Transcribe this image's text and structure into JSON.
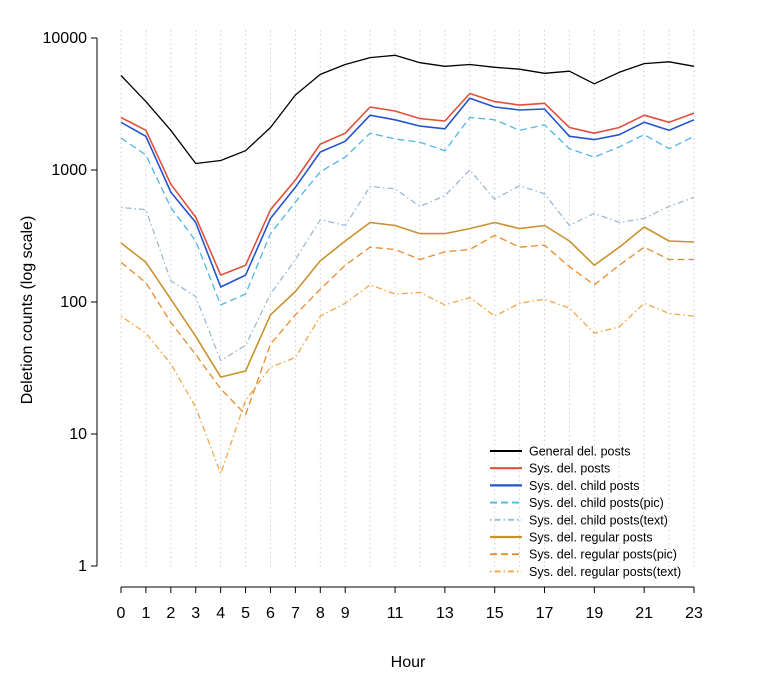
{
  "chart_data": {
    "type": "line",
    "xlabel": "Hour",
    "ylabel": "Deletion counts (log scale)",
    "y_scale": "log",
    "ylim": [
      1,
      10000
    ],
    "xlim": [
      0,
      23
    ],
    "y_ticks": [
      1,
      10,
      100,
      1000,
      10000
    ],
    "y_tick_labels": [
      "1",
      "10",
      "100",
      "1000",
      "10000"
    ],
    "x_ticks": [
      0,
      1,
      2,
      3,
      4,
      5,
      6,
      7,
      8,
      9,
      11,
      13,
      15,
      17,
      19,
      21,
      23
    ],
    "x_tick_labels": [
      "0",
      "1",
      "2",
      "3",
      "4",
      "5",
      "6",
      "7",
      "8",
      "9",
      "11",
      "13",
      "15",
      "17",
      "19",
      "21",
      "23"
    ],
    "vertical_grid": "dotted",
    "legend_position": "bottom-right",
    "x": [
      0,
      1,
      2,
      3,
      4,
      5,
      6,
      7,
      8,
      9,
      10,
      11,
      12,
      13,
      14,
      15,
      16,
      17,
      18,
      19,
      20,
      21,
      22,
      23
    ],
    "series": [
      {
        "name": "General del. posts",
        "color": "#000000",
        "dash": "solid",
        "width": 1.3,
        "values": [
          5200,
          3300,
          2000,
          1120,
          1180,
          1400,
          2100,
          3700,
          5300,
          6300,
          7100,
          7400,
          6500,
          6100,
          6300,
          6000,
          5800,
          5400,
          5600,
          4500,
          5500,
          6400,
          6600,
          6100
        ]
      },
      {
        "name": "Sys. del. posts",
        "color": "#e0503c",
        "dash": "solid",
        "width": 1.6,
        "values": [
          2500,
          2000,
          780,
          440,
          160,
          190,
          500,
          840,
          1570,
          1900,
          3000,
          2800,
          2450,
          2350,
          3800,
          3300,
          3100,
          3200,
          2100,
          1900,
          2100,
          2600,
          2300,
          2700
        ]
      },
      {
        "name": "Sys. del. child posts",
        "color": "#2255cc",
        "dash": "solid",
        "width": 1.6,
        "values": [
          2300,
          1800,
          680,
          400,
          130,
          160,
          430,
          740,
          1370,
          1650,
          2600,
          2400,
          2150,
          2050,
          3500,
          3000,
          2850,
          2900,
          1800,
          1700,
          1850,
          2300,
          2000,
          2400
        ]
      },
      {
        "name": "Sys. del. child posts(pic)",
        "color": "#4fb6e8",
        "dash": "dashed",
        "width": 1.3,
        "values": [
          1750,
          1300,
          520,
          290,
          95,
          115,
          330,
          570,
          970,
          1250,
          1900,
          1720,
          1620,
          1400,
          2500,
          2400,
          2000,
          2200,
          1450,
          1250,
          1500,
          1850,
          1450,
          1800
        ]
      },
      {
        "name": "Sys. del. child posts(text)",
        "color": "#9bbad8",
        "dash": "dotdash",
        "width": 1.3,
        "values": [
          520,
          500,
          145,
          110,
          36,
          47,
          115,
          210,
          420,
          380,
          750,
          720,
          530,
          640,
          1000,
          600,
          760,
          660,
          380,
          470,
          400,
          430,
          530,
          620
        ]
      },
      {
        "name": "Sys. del. regular posts",
        "color": "#c8932e",
        "dash": "solid",
        "width": 1.6,
        "values": [
          280,
          200,
          105,
          55,
          27,
          30,
          80,
          120,
          205,
          290,
          400,
          380,
          330,
          330,
          360,
          400,
          360,
          380,
          290,
          190,
          260,
          370,
          290,
          285
        ]
      },
      {
        "name": "Sys. del. regular posts(pic)",
        "color": "#e88b2a",
        "dash": "dashed",
        "width": 1.3,
        "values": [
          200,
          140,
          70,
          40,
          22,
          14,
          48,
          80,
          125,
          190,
          260,
          250,
          210,
          240,
          250,
          320,
          260,
          270,
          185,
          135,
          190,
          260,
          210,
          210
        ]
      },
      {
        "name": "Sys. del. regular posts(text)",
        "color": "#f0a848",
        "dash": "dotdash",
        "width": 1.3,
        "values": [
          78,
          58,
          34,
          16,
          5,
          18,
          32,
          38,
          78,
          98,
          135,
          115,
          118,
          95,
          108,
          78,
          98,
          105,
          90,
          58,
          65,
          98,
          82,
          78
        ]
      }
    ]
  }
}
